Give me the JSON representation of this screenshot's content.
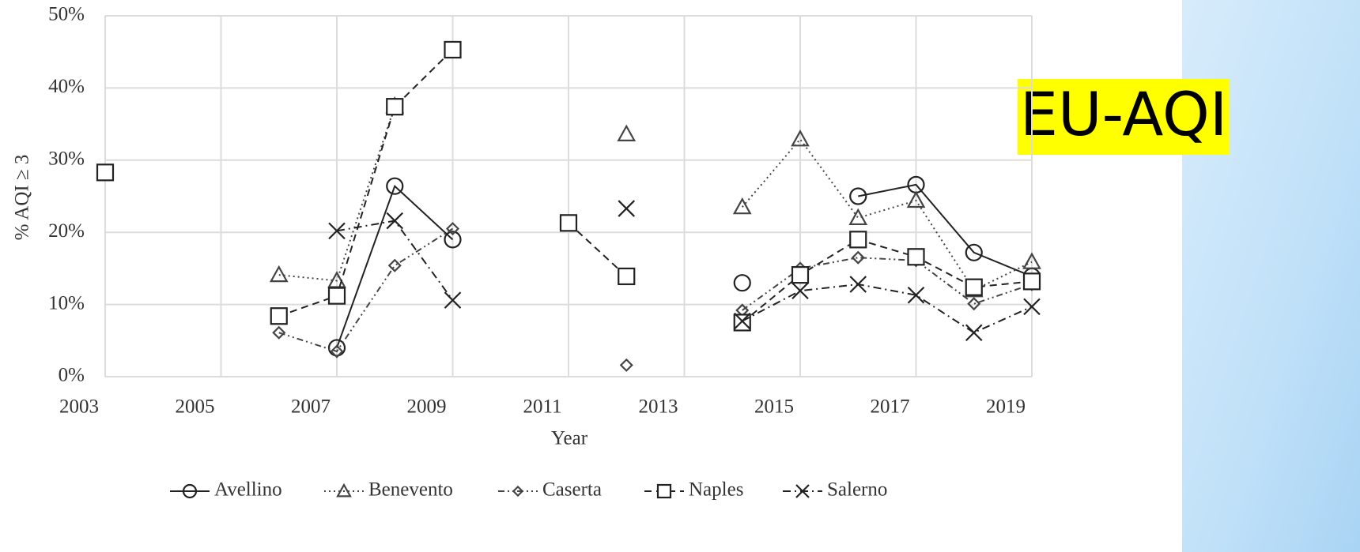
{
  "chart_data": {
    "type": "line",
    "xlabel": "Year",
    "ylabel": "% AQI ≥ 3",
    "annotation": "EU-AQI",
    "x": [
      2003,
      2005,
      2006,
      2007,
      2008,
      2009,
      2010,
      2011,
      2012,
      2013,
      2014,
      2015,
      2016,
      2017,
      2018,
      2019
    ],
    "xlim": [
      2003,
      2019
    ],
    "xticks": [
      2003,
      2005,
      2007,
      2009,
      2011,
      2013,
      2015,
      2017,
      2019
    ],
    "ylim": [
      0,
      50
    ],
    "yticks": [
      {
        "value": 0,
        "label": "0%"
      },
      {
        "value": 10,
        "label": "10%"
      },
      {
        "value": 20,
        "label": "20%"
      },
      {
        "value": 30,
        "label": "30%"
      },
      {
        "value": 40,
        "label": "40%"
      },
      {
        "value": 50,
        "label": "50%"
      }
    ],
    "grid": true,
    "legend": "bottom",
    "series": [
      {
        "name": "Avellino",
        "color": "#222222",
        "marker": "circle",
        "line_style": "solid",
        "values": [
          null,
          null,
          null,
          4.0,
          26.4,
          19.0,
          null,
          null,
          null,
          null,
          13.0,
          null,
          25.0,
          26.6,
          17.2,
          13.9
        ]
      },
      {
        "name": "Benevento",
        "color": "#444444",
        "marker": "triangle",
        "line_style": "dotted",
        "values": [
          null,
          null,
          14.1,
          13.3,
          37.5,
          null,
          null,
          null,
          33.6,
          null,
          23.5,
          32.9,
          22.0,
          24.4,
          12.0,
          15.9
        ]
      },
      {
        "name": "Caserta",
        "color": "#444444",
        "marker": "diamond",
        "line_style": "dash-dot-dot",
        "values": [
          null,
          null,
          6.1,
          3.5,
          15.4,
          20.5,
          null,
          null,
          1.6,
          null,
          9.2,
          15.0,
          16.5,
          16.1,
          10.1,
          12.8
        ]
      },
      {
        "name": "Naples",
        "color": "#222222",
        "marker": "square",
        "line_style": "dashed",
        "values": [
          28.3,
          null,
          8.4,
          11.2,
          37.4,
          45.3,
          null,
          21.3,
          13.9,
          null,
          7.5,
          14.1,
          19.0,
          16.6,
          12.4,
          13.2
        ]
      },
      {
        "name": "Salerno",
        "color": "#222222",
        "marker": "x",
        "line_style": "dash-dot",
        "values": [
          null,
          null,
          null,
          20.2,
          21.6,
          10.6,
          null,
          null,
          23.3,
          null,
          7.7,
          11.9,
          12.8,
          11.3,
          6.1,
          9.7
        ]
      }
    ]
  }
}
